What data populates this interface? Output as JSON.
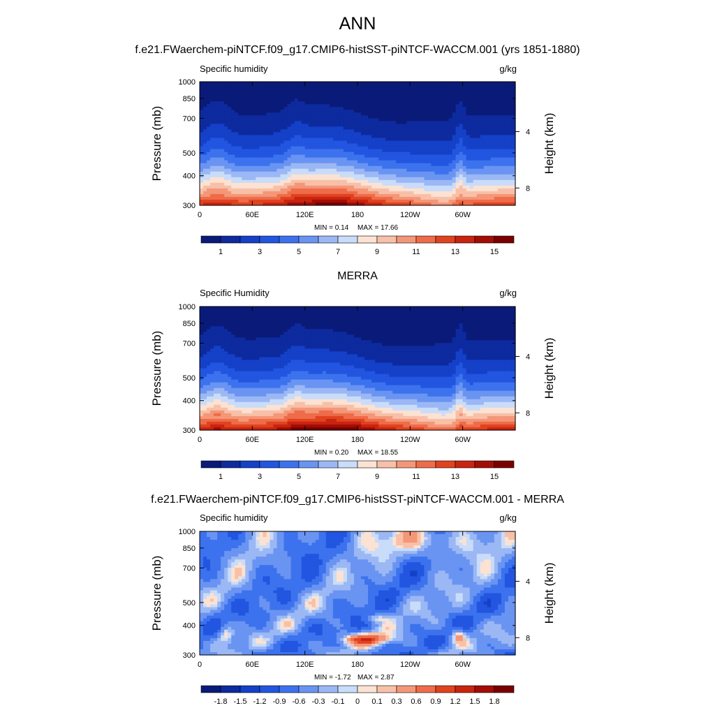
{
  "figure": {
    "season": "ANN",
    "case_title": "f.e21.FWaerchem-piNTCF.f09_g17.CMIP6-histSST-piNTCF-WACCM.001 (yrs 1851-1880)",
    "obs_title": "MERRA",
    "diff_title": "f.e21.FWaerchem-piNTCF.f09_g17.CMIP6-histSST-piNTCF-WACCM.001 - MERRA"
  },
  "axes": {
    "left_title": "Pressure (mb)",
    "right_title": "Height (km)",
    "pressure_ticks": [
      "300",
      "400",
      "500",
      "700",
      "850",
      "1000"
    ],
    "height_ticks": [
      "8",
      "4"
    ],
    "lon_ticks": [
      "0",
      "60E",
      "120E",
      "180",
      "120W",
      "60W"
    ]
  },
  "panels": [
    {
      "variable": "Specific humidity",
      "units": "g/kg",
      "min_label": "MIN =   0.14",
      "max_label": "MAX =   17.66"
    },
    {
      "variable": "Specific Humidity",
      "units": "g/kg",
      "min_label": "MIN =   0.20",
      "max_label": "MAX =   18.55"
    },
    {
      "variable": "Specific humidity",
      "units": "g/kg",
      "min_label": "MIN =  -1.72",
      "max_label": "MAX =   2.87"
    }
  ],
  "colors": {
    "abs_palette": [
      "#0a1a78",
      "#0d2a9e",
      "#1540c8",
      "#2255e0",
      "#3d72ee",
      "#6a94f2",
      "#9bb8f5",
      "#c9dcf9",
      "#fbe2d2",
      "#f8c0a8",
      "#f49778",
      "#ee6c4a",
      "#e0431f",
      "#c92410",
      "#a30d06",
      "#7a0000"
    ],
    "diff_palette": [
      "#0a1a78",
      "#0d2a9e",
      "#1540c8",
      "#2255e0",
      "#3d72ee",
      "#6a94f2",
      "#9bb8f5",
      "#c9dcf9",
      "#fbe2d2",
      "#f8c0a8",
      "#f49778",
      "#ee6c4a",
      "#e0431f",
      "#c92410",
      "#a30d06",
      "#7a0000"
    ],
    "topography": "#000000"
  },
  "colorbars": {
    "abs_labels": [
      "1",
      "3",
      "5",
      "7",
      "9",
      "11",
      "13",
      "15"
    ],
    "diff_labels": [
      "-1.8",
      "-1.5",
      "-1.2",
      "-0.9",
      "-0.6",
      "-0.3",
      "-0.1",
      "0",
      "0.1",
      "0.3",
      "0.6",
      "0.9",
      "1.2",
      "1.5",
      "1.8"
    ]
  },
  "chart_data": [
    {
      "type": "heatmap",
      "title": "Specific humidity",
      "units": "g/kg",
      "xlabel": "",
      "ylabel": "Pressure (mb)",
      "ylabel_right": "Height (km)",
      "x_ticks": [
        "0",
        "60E",
        "120E",
        "180",
        "120W",
        "60W"
      ],
      "y_ticks": [
        300,
        400,
        500,
        700,
        850,
        1000
      ],
      "ylim": [
        1000,
        300
      ],
      "levels": [
        0,
        1,
        2,
        3,
        4,
        5,
        6,
        7,
        8,
        9,
        10,
        11,
        12,
        13,
        14,
        15,
        16
      ],
      "min": 0.14,
      "max": 17.66
    },
    {
      "type": "heatmap",
      "title": "Specific Humidity",
      "units": "g/kg",
      "xlabel": "",
      "ylabel": "Pressure (mb)",
      "ylabel_right": "Height (km)",
      "x_ticks": [
        "0",
        "60E",
        "120E",
        "180",
        "120W",
        "60W"
      ],
      "y_ticks": [
        300,
        400,
        500,
        700,
        850,
        1000
      ],
      "ylim": [
        1000,
        300
      ],
      "levels": [
        0,
        1,
        2,
        3,
        4,
        5,
        6,
        7,
        8,
        9,
        10,
        11,
        12,
        13,
        14,
        15,
        16
      ],
      "min": 0.2,
      "max": 18.55
    },
    {
      "type": "heatmap",
      "title": "Specific humidity",
      "units": "g/kg",
      "xlabel": "",
      "ylabel": "Pressure (mb)",
      "ylabel_right": "Height (km)",
      "x_ticks": [
        "0",
        "60E",
        "120E",
        "180",
        "120W",
        "60W"
      ],
      "y_ticks": [
        300,
        400,
        500,
        700,
        850,
        1000
      ],
      "ylim": [
        1000,
        300
      ],
      "levels": [
        -1.8,
        -1.5,
        -1.2,
        -0.9,
        -0.6,
        -0.3,
        -0.1,
        0,
        0.1,
        0.3,
        0.6,
        0.9,
        1.2,
        1.5,
        1.8
      ],
      "min": -1.72,
      "max": 2.87
    }
  ]
}
